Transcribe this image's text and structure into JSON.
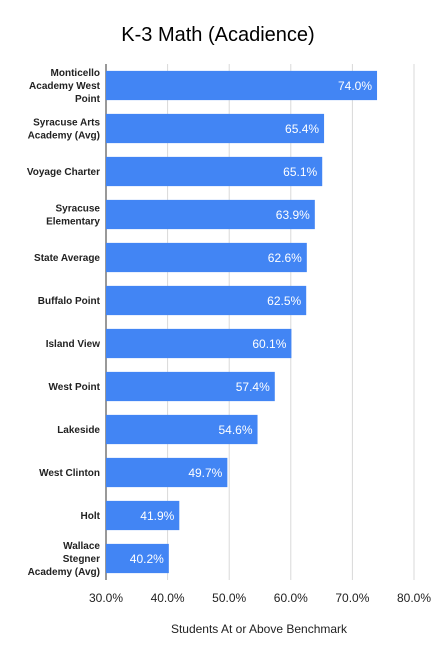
{
  "chart_data": {
    "type": "bar",
    "orientation": "horizontal",
    "title": "K-3 Math (Acadience)",
    "xlabel": "Students At or Above Benchmark",
    "ylabel": "",
    "xlim": [
      30,
      80
    ],
    "x_ticks": [
      30,
      40,
      50,
      60,
      70,
      80
    ],
    "x_tick_labels": [
      "30.0%",
      "40.0%",
      "50.0%",
      "60.0%",
      "70.0%",
      "80.0%"
    ],
    "grid": true,
    "legend": "none",
    "bar_color": "#4285f4",
    "categories": [
      "Monticello Academy West Point",
      "Syracuse Arts Academy (Avg)",
      "Voyage Charter",
      "Syracuse Elementary",
      "State Average",
      "Buffalo Point",
      "Island View",
      "West Point",
      "Lakeside",
      "West Clinton",
      "Holt",
      "Wallace Stegner Academy (Avg)"
    ],
    "values": [
      74.0,
      65.4,
      65.1,
      63.9,
      62.6,
      62.5,
      60.1,
      57.4,
      54.6,
      49.7,
      41.9,
      40.2
    ],
    "data_labels": [
      "74.0%",
      "65.4%",
      "65.1%",
      "63.9%",
      "62.6%",
      "62.5%",
      "60.1%",
      "57.4%",
      "54.6%",
      "49.7%",
      "41.9%",
      "40.2%"
    ]
  }
}
